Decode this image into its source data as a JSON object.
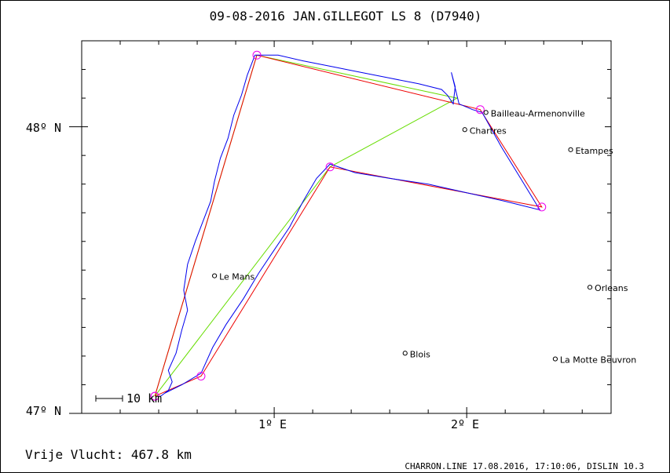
{
  "header": {
    "title": "09-08-2016    JAN.GILLEGOT    LS 8 (D7940)"
  },
  "footer": {
    "distance_label": "Vrije Vlucht:  467.8 km",
    "credit": "CHARRON.LINE 17.08.2016, 17:10:06, DISLIN 10.3"
  },
  "map": {
    "scale_label": "10 km",
    "axes": {
      "x_labels": [
        "1º E",
        "2º E"
      ],
      "y_labels": [
        "48º N",
        "47º N"
      ],
      "x_range_deg": [
        0.0,
        2.75
      ],
      "y_range_deg": [
        47.0,
        48.3
      ]
    },
    "colors": {
      "track": "#0000ee",
      "task_line": "#ee0000",
      "free_flight_line": "#66dd00",
      "turnpoint": "#ee00ee",
      "frame": "#000000"
    },
    "towns": [
      {
        "name": "Bailleau-Armenonville",
        "lon": 2.1,
        "lat": 48.05
      },
      {
        "name": "Chartres",
        "lon": 1.99,
        "lat": 47.99
      },
      {
        "name": "Etampes",
        "lon": 2.54,
        "lat": 47.92
      },
      {
        "name": "Le Mans",
        "lon": 0.69,
        "lat": 47.48
      },
      {
        "name": "Orleans",
        "lon": 2.64,
        "lat": 47.44
      },
      {
        "name": "Blois",
        "lon": 1.68,
        "lat": 47.21
      },
      {
        "name": "La Motte Beuvron",
        "lon": 2.46,
        "lat": 47.19
      }
    ],
    "turnpoints": [
      {
        "lon": 0.38,
        "lat": 47.06
      },
      {
        "lon": 0.91,
        "lat": 48.25
      },
      {
        "lon": 2.07,
        "lat": 48.06
      },
      {
        "lon": 2.39,
        "lat": 47.72
      },
      {
        "lon": 1.29,
        "lat": 47.86
      },
      {
        "lon": 0.62,
        "lat": 47.13
      },
      {
        "lon": 0.38,
        "lat": 47.06
      }
    ],
    "free_flight_points": [
      {
        "lon": 0.38,
        "lat": 47.06
      },
      {
        "lon": 0.91,
        "lat": 48.25
      },
      {
        "lon": 1.95,
        "lat": 48.1
      },
      {
        "lon": 1.29,
        "lat": 47.86
      },
      {
        "lon": 0.38,
        "lat": 47.06
      }
    ],
    "track": [
      {
        "lon": 0.41,
        "lat": 47.06
      },
      {
        "lon": 0.45,
        "lat": 47.08
      },
      {
        "lon": 0.47,
        "lat": 47.11
      },
      {
        "lon": 0.45,
        "lat": 47.15
      },
      {
        "lon": 0.49,
        "lat": 47.21
      },
      {
        "lon": 0.52,
        "lat": 47.29
      },
      {
        "lon": 0.55,
        "lat": 47.36
      },
      {
        "lon": 0.53,
        "lat": 47.43
      },
      {
        "lon": 0.55,
        "lat": 47.52
      },
      {
        "lon": 0.59,
        "lat": 47.6
      },
      {
        "lon": 0.63,
        "lat": 47.67
      },
      {
        "lon": 0.67,
        "lat": 47.74
      },
      {
        "lon": 0.69,
        "lat": 47.81
      },
      {
        "lon": 0.72,
        "lat": 47.89
      },
      {
        "lon": 0.76,
        "lat": 47.96
      },
      {
        "lon": 0.79,
        "lat": 48.04
      },
      {
        "lon": 0.83,
        "lat": 48.11
      },
      {
        "lon": 0.86,
        "lat": 48.18
      },
      {
        "lon": 0.9,
        "lat": 48.25
      },
      {
        "lon": 1.02,
        "lat": 48.25
      },
      {
        "lon": 1.15,
        "lat": 48.23
      },
      {
        "lon": 1.3,
        "lat": 48.21
      },
      {
        "lon": 1.45,
        "lat": 48.19
      },
      {
        "lon": 1.6,
        "lat": 48.17
      },
      {
        "lon": 1.75,
        "lat": 48.15
      },
      {
        "lon": 1.87,
        "lat": 48.13
      },
      {
        "lon": 1.9,
        "lat": 48.11
      },
      {
        "lon": 1.93,
        "lat": 48.08
      },
      {
        "lon": 1.94,
        "lat": 48.14
      },
      {
        "lon": 1.92,
        "lat": 48.19
      },
      {
        "lon": 1.96,
        "lat": 48.08
      },
      {
        "lon": 2.03,
        "lat": 48.06
      },
      {
        "lon": 2.08,
        "lat": 48.05
      },
      {
        "lon": 2.18,
        "lat": 47.93
      },
      {
        "lon": 2.28,
        "lat": 47.82
      },
      {
        "lon": 2.38,
        "lat": 47.71
      },
      {
        "lon": 2.2,
        "lat": 47.74
      },
      {
        "lon": 2.0,
        "lat": 47.77
      },
      {
        "lon": 1.8,
        "lat": 47.8
      },
      {
        "lon": 1.6,
        "lat": 47.82
      },
      {
        "lon": 1.42,
        "lat": 47.84
      },
      {
        "lon": 1.29,
        "lat": 47.87
      },
      {
        "lon": 1.22,
        "lat": 47.82
      },
      {
        "lon": 1.15,
        "lat": 47.74
      },
      {
        "lon": 1.08,
        "lat": 47.65
      },
      {
        "lon": 1.0,
        "lat": 47.57
      },
      {
        "lon": 0.92,
        "lat": 47.49
      },
      {
        "lon": 0.84,
        "lat": 47.4
      },
      {
        "lon": 0.75,
        "lat": 47.31
      },
      {
        "lon": 0.68,
        "lat": 47.23
      },
      {
        "lon": 0.62,
        "lat": 47.14
      },
      {
        "lon": 0.52,
        "lat": 47.1
      },
      {
        "lon": 0.43,
        "lat": 47.07
      }
    ]
  }
}
